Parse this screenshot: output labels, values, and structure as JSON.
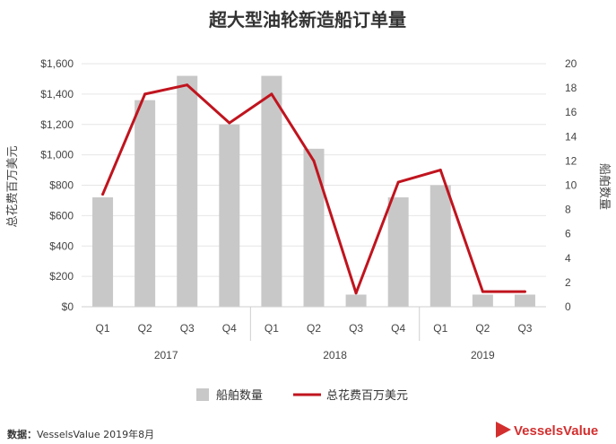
{
  "title": "超大型油轮新造船订单量",
  "source_label": "数据：",
  "source_text": "VesselsValue 2019年8月",
  "logo": {
    "text": "VesselsValue",
    "color": "#d32f2f"
  },
  "colors": {
    "bar": "#c8c8c8",
    "line": "#c0141e",
    "grid": "#e6e6e6",
    "axis": "#cfcfcf"
  },
  "chart_data": {
    "type": "bar",
    "categories": [
      "Q1",
      "Q2",
      "Q3",
      "Q4",
      "Q1",
      "Q2",
      "Q3",
      "Q4",
      "Q1",
      "Q2",
      "Q3"
    ],
    "groups": [
      {
        "label": "2017",
        "count": 4
      },
      {
        "label": "2018",
        "count": 4
      },
      {
        "label": "2019",
        "count": 3
      }
    ],
    "series": [
      {
        "name": "船舶数量",
        "type": "bar",
        "axis": "right",
        "values": [
          9,
          17,
          19,
          15,
          19,
          13,
          1,
          9,
          10,
          1,
          1
        ]
      },
      {
        "name": "总花费百万美元",
        "type": "line",
        "axis": "left",
        "values": [
          740,
          1400,
          1460,
          1210,
          1400,
          960,
          90,
          820,
          900,
          100,
          100
        ]
      }
    ],
    "y_left": {
      "label": "总花费百万美元",
      "min": 0,
      "max": 1600,
      "ticks": [
        "$0",
        "$200",
        "$400",
        "$600",
        "$800",
        "$1,000",
        "$1,200",
        "$1,400",
        "$1,600"
      ]
    },
    "y_right": {
      "label": "船舶数量",
      "min": 0,
      "max": 20,
      "ticks": [
        "0",
        "2",
        "4",
        "6",
        "8",
        "10",
        "12",
        "14",
        "16",
        "18",
        "20"
      ]
    },
    "grid": true,
    "legend_position": "bottom"
  }
}
